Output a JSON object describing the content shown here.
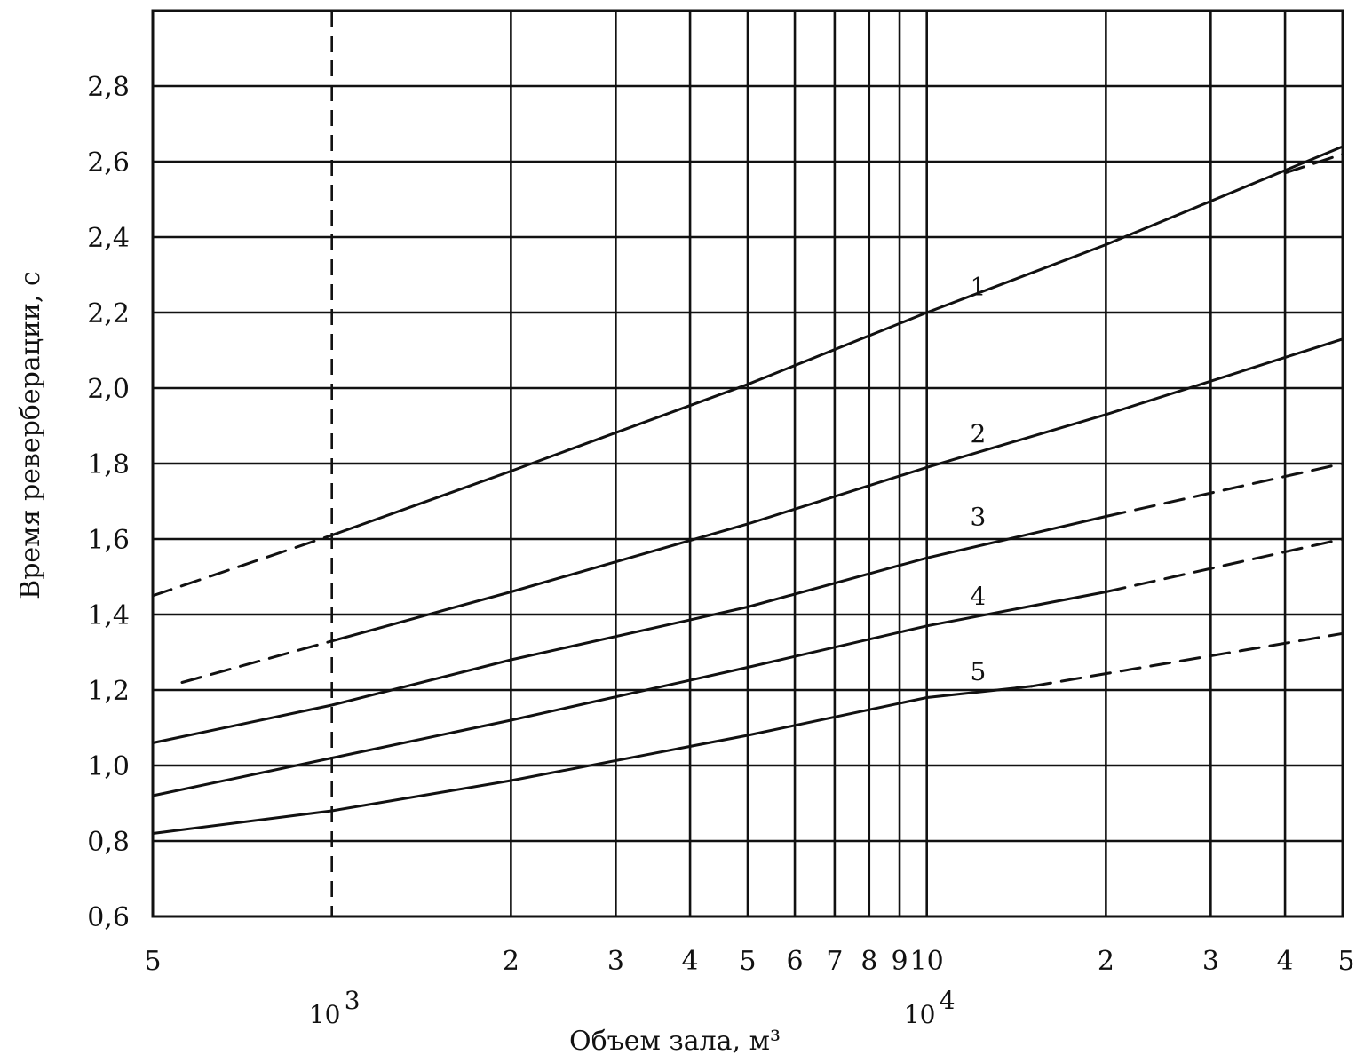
{
  "chart_data": {
    "type": "line",
    "xlabel": "Объем зала, м³",
    "ylabel": "Время реверберации, с",
    "xscale": "log",
    "xlim": [
      500,
      50000
    ],
    "ylim": [
      0.6,
      3.0
    ],
    "grid": true,
    "y_ticks": [
      {
        "value": 0.6,
        "label": "0,6"
      },
      {
        "value": 0.8,
        "label": "0,8"
      },
      {
        "value": 1.0,
        "label": "1,0"
      },
      {
        "value": 1.2,
        "label": "1,2"
      },
      {
        "value": 1.4,
        "label": "1,4"
      },
      {
        "value": 1.6,
        "label": "1,6"
      },
      {
        "value": 1.8,
        "label": "1,8"
      },
      {
        "value": 2.0,
        "label": "2,0"
      },
      {
        "value": 2.2,
        "label": "2,2"
      },
      {
        "value": 2.4,
        "label": "2,4"
      },
      {
        "value": 2.6,
        "label": "2,6"
      },
      {
        "value": 2.8,
        "label": "2,8"
      }
    ],
    "x_ticks": [
      {
        "value": 500,
        "label": "5"
      },
      {
        "value": 2000,
        "label": "2"
      },
      {
        "value": 3000,
        "label": "3"
      },
      {
        "value": 4000,
        "label": "4"
      },
      {
        "value": 5000,
        "label": "5"
      },
      {
        "value": 6000,
        "label": "6"
      },
      {
        "value": 7000,
        "label": "7"
      },
      {
        "value": 8000,
        "label": "8"
      },
      {
        "value": 9000,
        "label": "9"
      },
      {
        "value": 10000,
        "label": "10"
      },
      {
        "value": 20000,
        "label": "2"
      },
      {
        "value": 30000,
        "label": "3"
      },
      {
        "value": 40000,
        "label": "4"
      },
      {
        "value": 50000,
        "label": "5"
      }
    ],
    "decade_marks": [
      {
        "value": 1000,
        "base": "10",
        "exp": "3"
      },
      {
        "value": 10000,
        "base": "10",
        "exp": "4"
      }
    ],
    "gridlines_x": [
      500,
      1000,
      2000,
      3000,
      4000,
      5000,
      6000,
      7000,
      8000,
      9000,
      10000,
      20000,
      30000,
      40000,
      50000
    ],
    "gridlines_y": [
      0.6,
      0.8,
      1.0,
      1.2,
      1.4,
      1.6,
      1.8,
      2.0,
      2.2,
      2.4,
      2.6,
      2.8
    ],
    "series": [
      {
        "name": "1",
        "dashed_before": {
          "x": [
            500,
            1000
          ],
          "y": [
            1.45,
            1.61
          ]
        },
        "solid": {
          "x": [
            1000,
            2000,
            5000,
            10000,
            20000,
            50000
          ],
          "y": [
            1.61,
            1.78,
            2.01,
            2.2,
            2.38,
            2.64
          ]
        },
        "dashed_after": {
          "x": [
            40000,
            50000
          ],
          "y": [
            2.57,
            2.62
          ]
        }
      },
      {
        "name": "2",
        "dashed_before": {
          "x": [
            560,
            1000
          ],
          "y": [
            1.22,
            1.33
          ]
        },
        "solid": {
          "x": [
            1000,
            2000,
            5000,
            10000,
            20000,
            50000
          ],
          "y": [
            1.33,
            1.46,
            1.64,
            1.79,
            1.93,
            2.13
          ]
        },
        "dashed_after": null
      },
      {
        "name": "3",
        "dashed_before": null,
        "solid": {
          "x": [
            500,
            1000,
            2000,
            5000,
            10000,
            20000
          ],
          "y": [
            1.06,
            1.16,
            1.28,
            1.42,
            1.55,
            1.66
          ]
        },
        "dashed_after": {
          "x": [
            20000,
            50000
          ],
          "y": [
            1.66,
            1.8
          ]
        }
      },
      {
        "name": "4",
        "dashed_before": null,
        "solid": {
          "x": [
            500,
            1000,
            2000,
            5000,
            10000,
            20000
          ],
          "y": [
            0.92,
            1.02,
            1.12,
            1.26,
            1.37,
            1.46
          ]
        },
        "dashed_after": {
          "x": [
            20000,
            50000
          ],
          "y": [
            1.46,
            1.6
          ]
        }
      },
      {
        "name": "5",
        "dashed_before": null,
        "solid": {
          "x": [
            500,
            1000,
            2000,
            5000,
            10000,
            15000
          ],
          "y": [
            0.82,
            0.88,
            0.96,
            1.08,
            1.18,
            1.21
          ]
        },
        "dashed_after": {
          "x": [
            15000,
            50000
          ],
          "y": [
            1.21,
            1.35
          ]
        }
      }
    ],
    "series_labels": [
      {
        "text": "1",
        "x": 11000,
        "y": 2.27
      },
      {
        "text": "2",
        "x": 11000,
        "y": 1.88
      },
      {
        "text": "3",
        "x": 11000,
        "y": 1.66
      },
      {
        "text": "4",
        "x": 11000,
        "y": 1.45
      },
      {
        "text": "5",
        "x": 11000,
        "y": 1.25
      }
    ]
  }
}
